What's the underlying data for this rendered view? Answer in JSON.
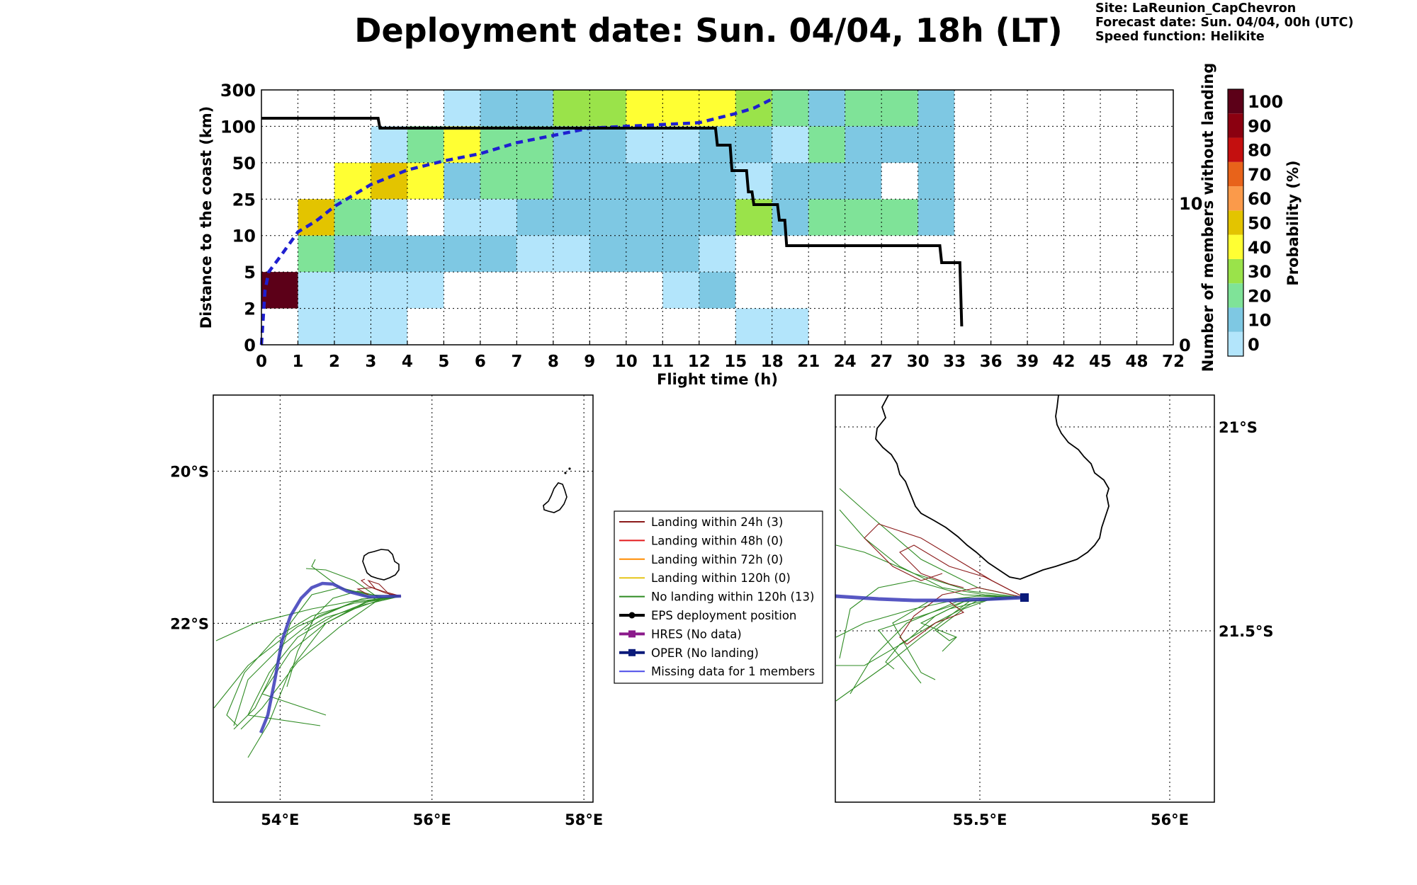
{
  "title": "Deployment date: Sun. 04/04, 18h (LT)",
  "info": {
    "site": "Site: LaReunion_CapChevron",
    "forecast": "Forecast date: Sun. 04/04, 00h (UTC)",
    "speed": "Speed function: Helikite"
  },
  "chart_data": [
    {
      "type": "heatmap",
      "title": "",
      "xlabel": "Flight time (h)",
      "ylabel": "Distance to the coast (km)",
      "y2label": "Number of members without landing",
      "x_ticks": [
        "0",
        "1",
        "2",
        "3",
        "4",
        "5",
        "6",
        "7",
        "8",
        "9",
        "10",
        "11",
        "12",
        "15",
        "18",
        "21",
        "24",
        "27",
        "30",
        "33",
        "36",
        "39",
        "42",
        "45",
        "48",
        "72"
      ],
      "y_ticks": [
        "0",
        "2",
        "5",
        "10",
        "25",
        "50",
        "100",
        "300"
      ],
      "y2_ticks": [
        "0",
        "10"
      ],
      "y2lim": [
        0,
        18
      ],
      "grid": true,
      "colorbar": {
        "label": "Probability (%)",
        "ticks": [
          "0",
          "10",
          "20",
          "30",
          "40",
          "50",
          "60",
          "70",
          "80",
          "90",
          "100"
        ],
        "colors": [
          "#b3e5fb",
          "#7ec8e3",
          "#7fe398",
          "#9ae34a",
          "#ffff33",
          "#e3c400",
          "#fb9a4a",
          "#e8631a",
          "#c40f0f",
          "#8b0010",
          "#5c0018"
        ]
      },
      "cells_note": "cells are [x_start_index, x_end_index, y_band_index, colour_index]",
      "cells": [
        [
          0,
          1,
          1,
          10
        ],
        [
          1,
          4,
          0,
          0
        ],
        [
          4,
          12,
          0,
          9999
        ],
        [
          13,
          15,
          0,
          0
        ],
        [
          1,
          5,
          1,
          0
        ],
        [
          11,
          12,
          1,
          0
        ],
        [
          12,
          13,
          1,
          1
        ],
        [
          1,
          2,
          2,
          2
        ],
        [
          2,
          7,
          2,
          1
        ],
        [
          7,
          9,
          2,
          0
        ],
        [
          9,
          12,
          2,
          1
        ],
        [
          12,
          13,
          2,
          0
        ],
        [
          1,
          2,
          3,
          5
        ],
        [
          2,
          3,
          3,
          2
        ],
        [
          3,
          4,
          3,
          0
        ],
        [
          5,
          7,
          3,
          0
        ],
        [
          7,
          13,
          3,
          1
        ],
        [
          13,
          14,
          3,
          3
        ],
        [
          14,
          15,
          3,
          1
        ],
        [
          15,
          18,
          3,
          2
        ],
        [
          18,
          19,
          3,
          1
        ],
        [
          2,
          4,
          4,
          4
        ],
        [
          3,
          4,
          4,
          5
        ],
        [
          4,
          5,
          4,
          4
        ],
        [
          5,
          6,
          4,
          1
        ],
        [
          6,
          8,
          4,
          2
        ],
        [
          8,
          13,
          4,
          1
        ],
        [
          13,
          14,
          4,
          0
        ],
        [
          14,
          17,
          4,
          1
        ],
        [
          18,
          19,
          4,
          1
        ],
        [
          3,
          4,
          5,
          0
        ],
        [
          4,
          5,
          5,
          2
        ],
        [
          5,
          6,
          5,
          4
        ],
        [
          6,
          8,
          5,
          2
        ],
        [
          8,
          10,
          5,
          1
        ],
        [
          10,
          12,
          5,
          0
        ],
        [
          12,
          13,
          5,
          1
        ],
        [
          13,
          14,
          5,
          1
        ],
        [
          14,
          15,
          5,
          0
        ],
        [
          15,
          16,
          5,
          2
        ],
        [
          16,
          19,
          5,
          1
        ],
        [
          5,
          6,
          6,
          0
        ],
        [
          6,
          8,
          6,
          1
        ],
        [
          8,
          10,
          6,
          3
        ],
        [
          10,
          13,
          6,
          4
        ],
        [
          13,
          14,
          6,
          3
        ],
        [
          14,
          15,
          6,
          2
        ],
        [
          15,
          16,
          6,
          1
        ],
        [
          16,
          18,
          6,
          2
        ],
        [
          18,
          19,
          6,
          1
        ]
      ],
      "series": [
        {
          "kind": "probability_curve",
          "x": [
            0,
            0.1,
            0.2,
            0.5,
            1,
            1.5,
            2,
            3,
            3.5,
            4,
            5,
            6,
            7,
            8,
            9,
            10,
            11,
            12,
            13,
            13.5,
            14
          ],
          "y_band": [
            0,
            1.5,
            2,
            2.4,
            3.1,
            3.4,
            3.8,
            4.4,
            4.6,
            4.8,
            5.05,
            5.25,
            5.55,
            5.75,
            5.95,
            6.0,
            6.05,
            6.1,
            6.35,
            6.5,
            6.75
          ]
        },
        {
          "kind": "members_without_landing",
          "x": [
            0,
            3.2,
            3.25,
            12.45,
            12.5,
            12.85,
            12.9,
            13.3,
            13.35,
            13.45,
            13.5,
            14.15,
            14.2,
            14.35,
            14.4,
            18.6,
            18.65,
            19.15,
            19.2
          ],
          "y": [
            16,
            16,
            15.3,
            15.3,
            14.1,
            14.1,
            12.3,
            12.3,
            10.8,
            10.8,
            9.9,
            9.9,
            8.8,
            8.8,
            7.0,
            7.0,
            5.8,
            5.8,
            1.3
          ]
        }
      ]
    },
    {
      "type": "line",
      "map": "overview",
      "x_ticks": [
        "54°E",
        "56°E",
        "58°E"
      ],
      "y_ticks": [
        "20°S",
        "22°S"
      ],
      "grid": true,
      "legend": {
        "placement": "between maps",
        "entries": [
          {
            "label": "Landing within 24h (3)",
            "color": "#8b1a1a"
          },
          {
            "label": "Landing within 48h (0)",
            "color": "#e31a1c"
          },
          {
            "label": "Landing within 72h (0)",
            "color": "#ff8c00"
          },
          {
            "label": "Landing within 120h (0)",
            "color": "#e6c619"
          },
          {
            "label": "No landing within 120h (13)",
            "color": "#2e8b22"
          },
          {
            "label": "EPS deployment position",
            "color": "#000000"
          },
          {
            "label": "HRES (No data)",
            "color": "#8b1a8b"
          },
          {
            "label": "OPER (No landing)",
            "color": "#0a1a7a"
          },
          {
            "label": "Missing data for 1 members",
            "color": "#4a4ae8"
          }
        ]
      }
    },
    {
      "type": "line",
      "map": "zoom",
      "x_ticks": [
        "55.5°E",
        "56°E"
      ],
      "y_ticks": [
        "21°S",
        "21.5°S"
      ],
      "grid": true
    }
  ]
}
